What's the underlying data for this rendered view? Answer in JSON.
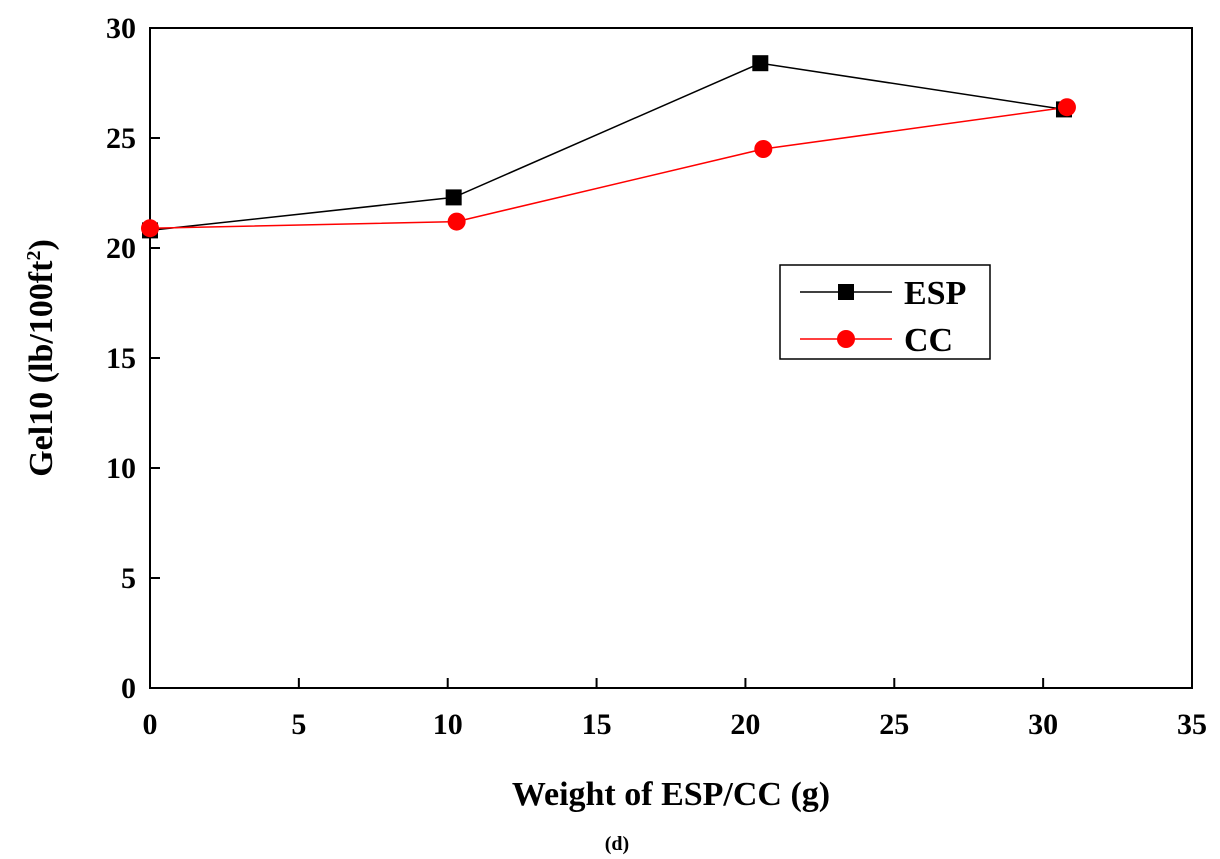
{
  "chart_data": {
    "type": "line",
    "title": "",
    "xlabel": "Weight of ESP/CC (g)",
    "ylabel_main": "Gel10 (lb/100ft",
    "ylabel_sup": "2",
    "ylabel_close": ")",
    "caption": "(d)",
    "xlim": [
      0,
      35
    ],
    "ylim": [
      0,
      30
    ],
    "xticks": [
      0,
      5,
      10,
      15,
      20,
      25,
      30,
      35
    ],
    "yticks": [
      0,
      5,
      10,
      15,
      20,
      25,
      30
    ],
    "grid": false,
    "legend_position": "center-right",
    "series": [
      {
        "name": "ESP",
        "color": "#000000",
        "marker": "square",
        "x": [
          0,
          10.2,
          20.5,
          30.7
        ],
        "y": [
          20.8,
          22.3,
          28.4,
          26.3
        ]
      },
      {
        "name": "CC",
        "color": "#ff0000",
        "marker": "circle",
        "x": [
          0,
          10.3,
          20.6,
          30.8
        ],
        "y": [
          20.9,
          21.2,
          24.5,
          26.4
        ]
      }
    ]
  }
}
